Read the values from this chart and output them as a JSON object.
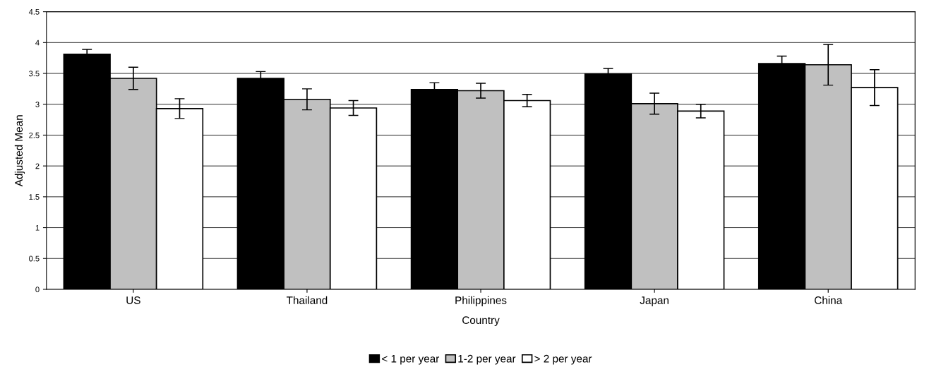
{
  "chart_data": {
    "type": "bar",
    "xlabel": "Country",
    "ylabel": "Adjusted Mean",
    "categories": [
      "US",
      "Thailand",
      "Philippines",
      "Japan",
      "China"
    ],
    "series": [
      {
        "name": "< 1 per year",
        "color": "#000000",
        "values": [
          3.81,
          3.42,
          3.24,
          3.49,
          3.66
        ],
        "errors": [
          0.08,
          0.11,
          0.11,
          0.09,
          0.12
        ]
      },
      {
        "name": "1-2 per year",
        "color": "#c0c0c0",
        "values": [
          3.42,
          3.08,
          3.22,
          3.01,
          3.64
        ],
        "errors": [
          0.18,
          0.17,
          0.12,
          0.17,
          0.33
        ]
      },
      {
        "name": "> 2 per year",
        "color": "#ffffff",
        "values": [
          2.93,
          2.94,
          3.06,
          2.89,
          3.27
        ],
        "errors": [
          0.16,
          0.12,
          0.1,
          0.11,
          0.29
        ]
      }
    ],
    "ylim": [
      0,
      4.5
    ],
    "yticks": [
      0,
      0.5,
      1,
      1.5,
      2,
      2.5,
      3,
      3.5,
      4,
      4.5
    ],
    "grid": "y",
    "legend": "bottom"
  }
}
